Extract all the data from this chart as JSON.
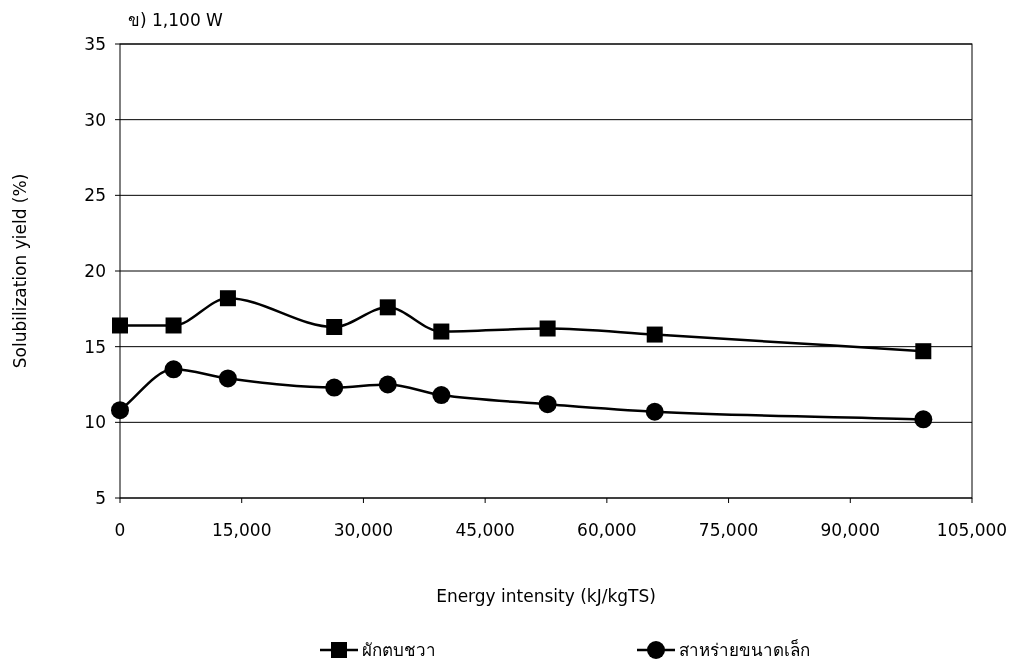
{
  "chart_data": {
    "type": "line",
    "title": "ข) 1,100 W",
    "xlabel": "Energy intensity (kJ/kgTS)",
    "ylabel": "Solubilization yield  (%)",
    "xlim": [
      0,
      105000
    ],
    "xticks": [
      {
        "value": 0,
        "label": "0"
      },
      {
        "value": 15000,
        "label": "15,000"
      },
      {
        "value": 30000,
        "label": "30,000"
      },
      {
        "value": 45000,
        "label": "45,000"
      },
      {
        "value": 60000,
        "label": "60,000"
      },
      {
        "value": 75000,
        "label": "75,000"
      },
      {
        "value": 90000,
        "label": "90,000"
      },
      {
        "value": 105000,
        "label": "105,000"
      }
    ],
    "ylim": [
      5,
      35
    ],
    "yticks": [
      5,
      10,
      15,
      20,
      25,
      30,
      35
    ],
    "grid": "y",
    "legend": "bottom",
    "series": [
      {
        "name": "ผักตบชวา",
        "color": "#000000",
        "marker": "square",
        "x": [
          0,
          6600,
          13300,
          26400,
          33000,
          39600,
          52700,
          65900,
          99000
        ],
        "values": [
          16.4,
          16.4,
          18.2,
          16.3,
          17.6,
          16.0,
          16.2,
          15.8,
          14.7
        ]
      },
      {
        "name": "สาหร่ายขนาดเล็ก",
        "color": "#000000",
        "marker": "circle",
        "x": [
          0,
          6600,
          13300,
          26400,
          33000,
          39600,
          52700,
          65900,
          99000
        ],
        "values": [
          10.8,
          13.5,
          12.9,
          12.3,
          12.5,
          11.8,
          11.2,
          10.7,
          10.2
        ]
      }
    ]
  }
}
